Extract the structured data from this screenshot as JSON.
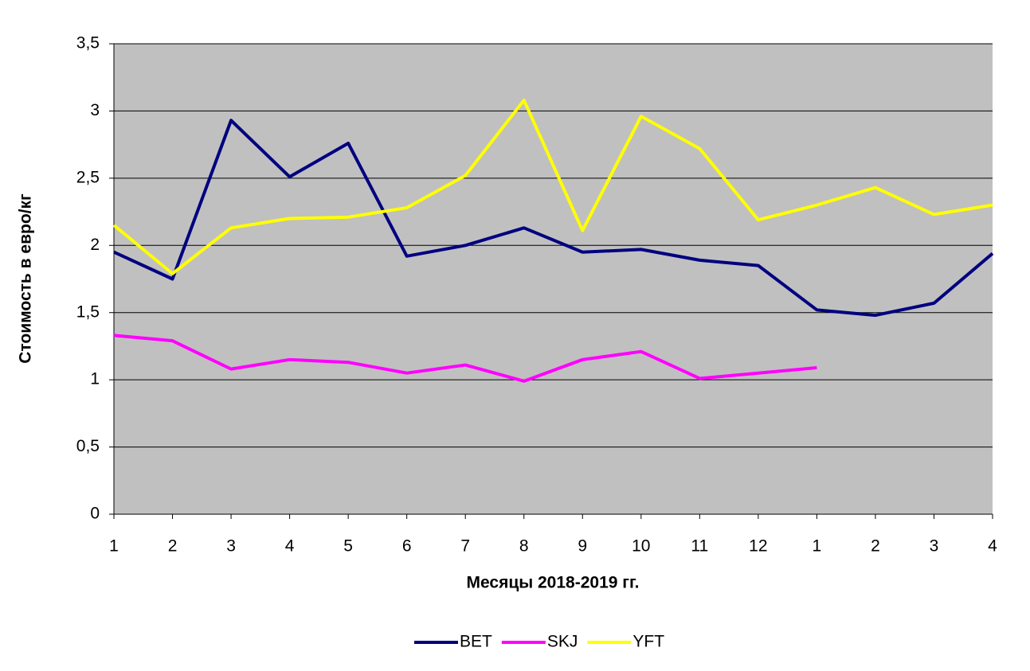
{
  "chart_data": {
    "type": "line",
    "x_label": "Месяцы 2018-2019 гг.",
    "y_label": "Стоимость в евро/кг",
    "categories": [
      "1",
      "2",
      "3",
      "4",
      "5",
      "6",
      "7",
      "8",
      "9",
      "10",
      "11",
      "12",
      "1",
      "2",
      "3",
      "4"
    ],
    "series": [
      {
        "name": "BET",
        "color": "#000080",
        "values": [
          1.95,
          1.75,
          2.93,
          2.51,
          2.76,
          1.92,
          2.0,
          2.13,
          1.95,
          1.97,
          1.89,
          1.85,
          1.52,
          1.48,
          1.57,
          1.94
        ]
      },
      {
        "name": "SKJ",
        "color": "#ff00ff",
        "values": [
          1.33,
          1.29,
          1.08,
          1.15,
          1.13,
          1.05,
          1.11,
          0.99,
          1.15,
          1.21,
          1.01,
          1.05,
          1.09,
          null,
          null,
          null
        ]
      },
      {
        "name": "YFT",
        "color": "#ffff00",
        "values": [
          2.15,
          1.79,
          2.13,
          2.2,
          2.21,
          2.28,
          2.52,
          3.08,
          2.11,
          2.96,
          2.72,
          2.19,
          2.3,
          2.43,
          2.23,
          2.3
        ]
      }
    ],
    "ylim": [
      0,
      3.5
    ],
    "yticks": [
      0,
      {
        "value": 0.5,
        "label": "0,5"
      },
      1,
      {
        "value": 1.5,
        "label": "1,5"
      },
      2,
      {
        "value": 2.5,
        "label": "2,5"
      },
      3,
      {
        "value": 3.5,
        "label": "3,5"
      }
    ],
    "grid": true,
    "plot_background": "#c0c0c0",
    "legend": "bottom"
  }
}
